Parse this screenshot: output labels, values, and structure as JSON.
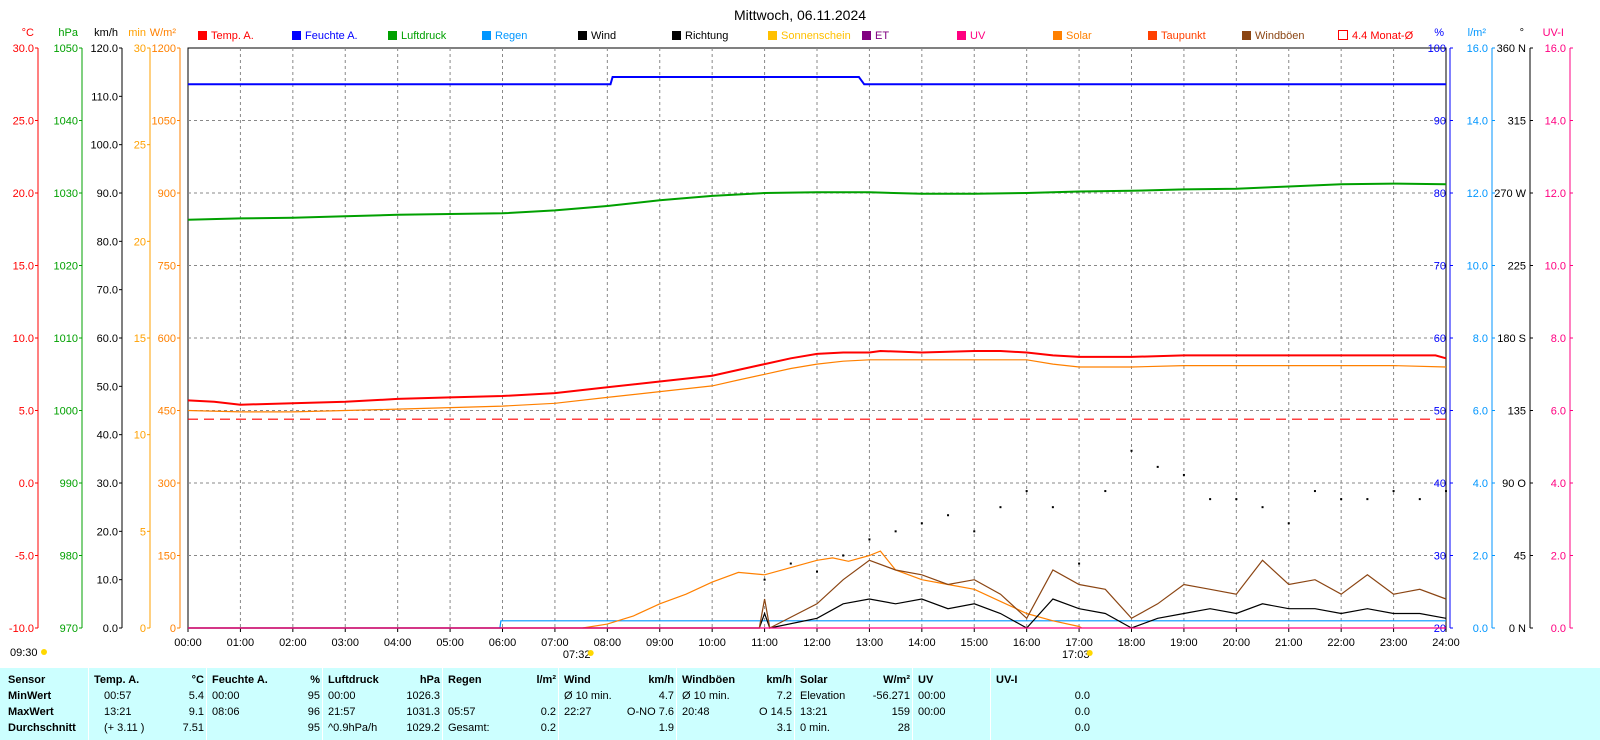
{
  "title": "Mittwoch, 06.11.2024",
  "colors": {
    "temp": "#ff0000",
    "humidity": "#0000ff",
    "pressure": "#00a000",
    "rain": "#0096ff",
    "wind": "#000000",
    "sun": "#ffc000",
    "solar": "#ff8000",
    "gust": "#8b4513",
    "uvi": "#ff0080",
    "month_avg": "#ff0000"
  },
  "legend": [
    {
      "label": "Temp. A.",
      "color": "#ff0000",
      "hollow": false
    },
    {
      "label": "Feuchte A.",
      "color": "#0000ff",
      "hollow": false
    },
    {
      "label": "Luftdruck",
      "color": "#00a000",
      "hollow": false
    },
    {
      "label": "Regen",
      "color": "#0096ff",
      "hollow": false
    },
    {
      "label": "Wind",
      "color": "#000000",
      "hollow": false
    },
    {
      "label": "Richtung",
      "color": "#000000",
      "hollow": false
    },
    {
      "label": "Sonnenschein",
      "color": "#ffc000",
      "hollow": false
    },
    {
      "label": "ET",
      "color": "#800080",
      "hollow": false
    },
    {
      "label": "UV",
      "color": "#ff0080",
      "hollow": false
    },
    {
      "label": "Solar",
      "color": "#ff8000",
      "hollow": false
    },
    {
      "label": "Taupunkt",
      "color": "#ff4000",
      "hollow": false
    },
    {
      "label": "Windböen",
      "color": "#8b4513",
      "hollow": false
    },
    {
      "label": "4.4 Monat-Ø",
      "color": "#ff0000",
      "hollow": true
    }
  ],
  "chart_data": {
    "type": "line",
    "title": "Mittwoch, 06.11.2024",
    "x_unit": "hours",
    "xlim": [
      0,
      24
    ],
    "x_ticks": [
      "00:00",
      "01:00",
      "02:00",
      "03:00",
      "04:00",
      "05:00",
      "06:00",
      "07:00",
      "08:00",
      "09:00",
      "10:00",
      "11:00",
      "12:00",
      "13:00",
      "14:00",
      "15:00",
      "16:00",
      "17:00",
      "18:00",
      "19:00",
      "20:00",
      "21:00",
      "22:00",
      "23:00",
      "24:00"
    ],
    "grid": true,
    "axes": [
      {
        "unit": "°C",
        "ylim": [
          -10,
          30
        ],
        "ticks": [
          "30.0",
          "25.0",
          "20.0",
          "15.0",
          "10.0",
          "5.0",
          "0.0",
          "-5.0",
          "-10.0"
        ],
        "color": "#ff0000"
      },
      {
        "unit": "hPa",
        "ylim": [
          970,
          1050
        ],
        "ticks": [
          "1050",
          "1040",
          "1030",
          "1020",
          "1010",
          "1000",
          "990",
          "980",
          "970"
        ],
        "color": "#00a000"
      },
      {
        "unit": "km/h",
        "ylim": [
          0,
          120
        ],
        "ticks": [
          "120.0",
          "110.0",
          "100.0",
          "90.0",
          "80.0",
          "70.0",
          "60.0",
          "50.0",
          "40.0",
          "30.0",
          "20.0",
          "10.0",
          "0.0"
        ],
        "color": "#000000"
      },
      {
        "unit": "min",
        "ylim": [
          0,
          30
        ],
        "ticks": [
          "30",
          "25",
          "20",
          "15",
          "10",
          "5",
          "0"
        ],
        "color": "#ffa000"
      },
      {
        "unit": "W/m²",
        "ylim": [
          0,
          1200
        ],
        "ticks": [
          "1200",
          "1050",
          "900",
          "750",
          "600",
          "450",
          "300",
          "150",
          "0"
        ],
        "color": "#ff8000"
      },
      {
        "unit": "%",
        "ylim": [
          20,
          100
        ],
        "ticks": [
          "100",
          "90",
          "80",
          "70",
          "60",
          "50",
          "40",
          "30",
          "20"
        ],
        "color": "#0000ff"
      },
      {
        "unit": "l/m²",
        "ylim": [
          0,
          16
        ],
        "ticks": [
          "16.0",
          "14.0",
          "12.0",
          "10.0",
          "8.0",
          "6.0",
          "4.0",
          "2.0",
          "0.0"
        ],
        "color": "#0096ff"
      },
      {
        "unit": "°",
        "ylim": [
          0,
          360
        ],
        "ticks": [
          "360 N",
          "315",
          "270 W",
          "225",
          "180 S",
          "135",
          "90 O",
          "45",
          "0 N"
        ],
        "color": "#000000"
      },
      {
        "unit": "UV-I",
        "ylim": [
          0,
          16
        ],
        "ticks": [
          "16.0",
          "14.0",
          "12.0",
          "10.0",
          "8.0",
          "6.0",
          "4.0",
          "2.0",
          "0.0"
        ],
        "color": "#ff0080"
      }
    ],
    "series": [
      {
        "name": "Temp. A.",
        "axis": "°C",
        "x": [
          0,
          0.5,
          1,
          2,
          3,
          4,
          5,
          6,
          7,
          8,
          9,
          10,
          10.5,
          11,
          11.5,
          12,
          12.5,
          13,
          13.21,
          14,
          15,
          15.5,
          16,
          16.5,
          17,
          18,
          19,
          20,
          21,
          22,
          23,
          23.8,
          24
        ],
        "y": [
          5.7,
          5.6,
          5.4,
          5.5,
          5.6,
          5.8,
          5.9,
          6.0,
          6.2,
          6.6,
          7.0,
          7.4,
          7.8,
          8.2,
          8.6,
          8.9,
          9.0,
          9.0,
          9.1,
          9.0,
          9.1,
          9.1,
          9.0,
          8.8,
          8.7,
          8.7,
          8.8,
          8.8,
          8.8,
          8.8,
          8.8,
          8.8,
          8.6
        ]
      },
      {
        "name": "Taupunkt",
        "axis": "°C",
        "x": [
          0,
          1,
          2,
          3,
          4,
          5,
          6,
          7,
          8,
          9,
          10,
          10.5,
          11,
          11.5,
          12,
          12.5,
          13,
          14,
          15,
          16,
          16.5,
          17,
          18,
          19,
          20,
          21,
          22,
          23,
          24
        ],
        "y": [
          5.0,
          4.9,
          4.9,
          5.0,
          5.1,
          5.2,
          5.3,
          5.5,
          5.9,
          6.3,
          6.7,
          7.1,
          7.5,
          7.9,
          8.2,
          8.4,
          8.5,
          8.5,
          8.5,
          8.5,
          8.2,
          8.0,
          8.0,
          8.1,
          8.1,
          8.1,
          8.1,
          8.1,
          8.0
        ]
      },
      {
        "name": "4.4 Monat-Ø",
        "axis": "°C",
        "x": [
          0,
          24
        ],
        "y": [
          4.4,
          4.4
        ]
      },
      {
        "name": "Feuchte A.",
        "axis": "%",
        "x": [
          0,
          8.06,
          8.1,
          12.8,
          12.9,
          13.0,
          24
        ],
        "y": [
          95,
          95,
          96,
          96,
          95,
          95,
          95
        ]
      },
      {
        "name": "Luftdruck",
        "axis": "hPa",
        "x": [
          0,
          1,
          2,
          3,
          4,
          5,
          6,
          7,
          8,
          9,
          10,
          11,
          12,
          13,
          14,
          15,
          16,
          17,
          18,
          19,
          20,
          21,
          22,
          23,
          24
        ],
        "y": [
          1026.3,
          1026.5,
          1026.6,
          1026.8,
          1027.0,
          1027.1,
          1027.2,
          1027.6,
          1028.2,
          1029.0,
          1029.6,
          1030.0,
          1030.1,
          1030.1,
          1029.9,
          1029.9,
          1030.0,
          1030.2,
          1030.3,
          1030.5,
          1030.6,
          1030.9,
          1031.2,
          1031.3,
          1031.2
        ]
      },
      {
        "name": "Regen",
        "axis": "l/m²",
        "x": [
          0,
          5.95,
          5.97,
          24
        ],
        "y": [
          0,
          0,
          0.2,
          0.2
        ]
      },
      {
        "name": "Solar",
        "axis": "W/m²",
        "x": [
          7.53,
          8,
          8.5,
          9,
          9.5,
          10,
          10.5,
          11,
          11.5,
          12,
          12.3,
          12.6,
          13,
          13.21,
          13.5,
          14,
          14.5,
          15,
          15.5,
          16,
          16.5,
          17,
          17.05
        ],
        "y": [
          0,
          8,
          25,
          50,
          70,
          95,
          115,
          110,
          125,
          140,
          145,
          138,
          150,
          159,
          120,
          100,
          90,
          80,
          55,
          30,
          15,
          3,
          0
        ]
      },
      {
        "name": "Wind",
        "axis": "km/h",
        "x": [
          0,
          10.9,
          11,
          11.1,
          12,
          12.5,
          13,
          13.5,
          14,
          14.5,
          15,
          15.5,
          16,
          16.5,
          17,
          17.5,
          18,
          18.5,
          19,
          19.5,
          20,
          20.5,
          21,
          21.5,
          22,
          22.5,
          23,
          23.5,
          24
        ],
        "y": [
          0,
          0,
          3,
          0,
          2,
          5,
          6,
          5,
          6,
          4,
          5,
          3,
          0,
          6,
          4,
          3,
          0,
          2,
          3,
          4,
          3,
          5,
          4,
          4,
          3,
          4,
          3,
          3,
          2
        ]
      },
      {
        "name": "Windböen",
        "axis": "km/h",
        "x": [
          0,
          10.9,
          11,
          11.1,
          12,
          12.5,
          13,
          13.5,
          14,
          14.5,
          15,
          15.5,
          16,
          16.5,
          17,
          17.5,
          18,
          18.5,
          19,
          19.5,
          20,
          20.5,
          21,
          21.5,
          22,
          22.5,
          23,
          23.5,
          24
        ],
        "y": [
          0,
          0,
          6,
          0,
          5,
          10,
          14,
          12,
          11,
          9,
          10,
          7,
          2,
          12,
          9,
          8,
          2,
          5,
          9,
          8,
          7,
          14,
          9,
          10,
          7,
          11,
          7,
          8,
          6
        ]
      },
      {
        "name": "Richtung",
        "axis": "°",
        "x": [
          11,
          11.5,
          12,
          12.5,
          13,
          13.5,
          14,
          14.5,
          15,
          15.5,
          16,
          16.5,
          17,
          17.5,
          18,
          18.5,
          19,
          19.5,
          20,
          20.5,
          21,
          21.5,
          22,
          22.5,
          23,
          23.5,
          24
        ],
        "y": [
          30,
          40,
          35,
          45,
          55,
          60,
          65,
          70,
          60,
          75,
          85,
          75,
          40,
          85,
          110,
          100,
          95,
          80,
          80,
          75,
          65,
          85,
          80,
          80,
          85,
          80,
          85
        ]
      },
      {
        "name": "UV-I",
        "axis": "UV-I",
        "x": [
          0,
          24
        ],
        "y": [
          0,
          0
        ]
      }
    ],
    "sun_markers": [
      {
        "label": "09:30",
        "x": "left"
      },
      {
        "label": "07:32",
        "hour": 7.53
      },
      {
        "label": "17:03",
        "hour": 17.05
      }
    ]
  },
  "table": {
    "columns": [
      {
        "name": "Sensor",
        "unit": "",
        "rows": [
          "MinWert",
          "MaxWert",
          "Durchschnitt"
        ]
      },
      {
        "name": "Temp. A.",
        "unit": "°C",
        "t": [
          "00:57",
          "13:21",
          "(+ 3.11 )"
        ],
        "v": [
          "5.4",
          "9.1",
          "7.51"
        ]
      },
      {
        "name": "Feuchte A.",
        "unit": "%",
        "t": [
          "00:00",
          "08:06",
          ""
        ],
        "v": [
          "95",
          "96",
          "95"
        ]
      },
      {
        "name": "Luftdruck",
        "unit": "hPa",
        "t": [
          "00:00",
          "21:57",
          "^0.9hPa/h"
        ],
        "v": [
          "1026.3",
          "1031.3",
          "1029.2"
        ]
      },
      {
        "name": "Regen",
        "unit": "l/m²",
        "t": [
          "",
          "05:57",
          "Gesamt:"
        ],
        "v": [
          "",
          "0.2",
          "0.2"
        ]
      },
      {
        "name": "Wind",
        "unit": "km/h",
        "t": [
          "Ø 10 min.",
          "22:27",
          ""
        ],
        "v": [
          "4.7",
          "O-NO 7.6",
          "1.9"
        ]
      },
      {
        "name": "Windböen",
        "unit": "km/h",
        "t": [
          "Ø 10 min.",
          "20:48",
          ""
        ],
        "v": [
          "7.2",
          "O 14.5",
          "3.1"
        ]
      },
      {
        "name": "Solar",
        "unit": "W/m²",
        "t": [
          "Elevation",
          "13:21",
          "0 min."
        ],
        "v": [
          "-56.271",
          "159",
          "28"
        ]
      },
      {
        "name": "UV",
        "unit": "",
        "t": [
          "00:00",
          "00:00",
          ""
        ],
        "v": [
          "",
          "",
          ""
        ]
      },
      {
        "name": "UV-I",
        "unit": "",
        "t": [
          "",
          "",
          ""
        ],
        "v": [
          "0.0",
          "0.0",
          "0.0"
        ]
      }
    ]
  }
}
